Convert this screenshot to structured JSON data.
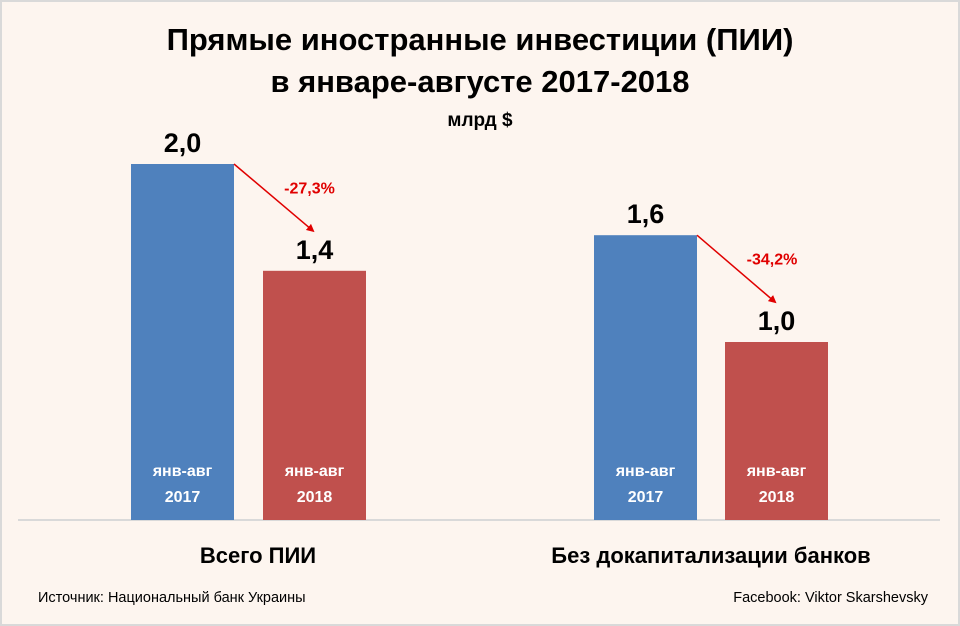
{
  "chart_data": {
    "type": "bar",
    "title": "Прямые иностранные инвестиции (ПИИ)",
    "subtitle": "в январе-августе 2017-2018",
    "unit": "млрд $",
    "categories": [
      "Всего ПИИ",
      "Без докапитализации банков"
    ],
    "series": [
      {
        "name": "янв-авг 2017",
        "period": "янв-авг",
        "year": "2017",
        "color": "#4F81BD",
        "values": [
          2.0,
          1.6
        ],
        "labels": [
          "2,0",
          "1,6"
        ]
      },
      {
        "name": "янв-авг 2018",
        "period": "янв-авг",
        "year": "2018",
        "color": "#C0504D",
        "values": [
          1.4,
          1.0
        ],
        "labels": [
          "1,4",
          "1,0"
        ]
      }
    ],
    "changes": [
      "-27,3%",
      "-34,2%"
    ],
    "ylim": [
      0,
      2.0
    ],
    "grid": false,
    "legend": "none"
  },
  "footer": {
    "source": "Источник: Национальный банк Украины",
    "credit": "Facebook: Viktor Skarshevsky"
  }
}
